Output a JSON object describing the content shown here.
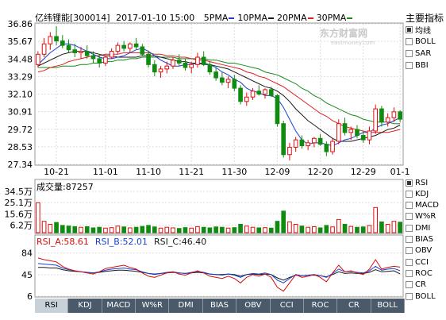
{
  "header": {
    "stock_name": "亿纬锂能",
    "code": "[300014]",
    "datetime": "2017-01-10 15:00",
    "ma_legend": [
      {
        "label": "5PMA",
        "color": "#1a3fd0"
      },
      {
        "label": "10PMA",
        "color": "#1a1a1a"
      },
      {
        "label": "20PMA",
        "color": "#e02020"
      },
      {
        "label": "30PMA",
        "color": "#1a8a1a"
      }
    ]
  },
  "watermark": {
    "main": "东方财富网",
    "sub": "eastmoney.com"
  },
  "sidebar": {
    "title": "主要指标",
    "main_items": [
      {
        "label": "均线",
        "checked": true
      },
      {
        "label": "BOLL",
        "checked": false
      },
      {
        "label": "SAR",
        "checked": false
      },
      {
        "label": "BBI",
        "checked": false
      }
    ],
    "sub_items": [
      {
        "label": "RSI",
        "checked": true
      },
      {
        "label": "KDJ",
        "checked": false
      },
      {
        "label": "MACD",
        "checked": false
      },
      {
        "label": "W%R",
        "checked": false
      },
      {
        "label": "DMI",
        "checked": false
      },
      {
        "label": "BIAS",
        "checked": false
      },
      {
        "label": "OBV",
        "checked": false
      },
      {
        "label": "CCI",
        "checked": false
      },
      {
        "label": "ROC",
        "checked": false
      },
      {
        "label": "CR",
        "checked": false
      },
      {
        "label": "BOLL",
        "checked": false
      }
    ]
  },
  "tabs": [
    "RSI",
    "KDJ",
    "MACD",
    "W%R",
    "DMI",
    "BIAS",
    "OBV",
    "CCI",
    "ROC",
    "CR",
    "BOLL"
  ],
  "active_tab": "RSI",
  "volume_panel": {
    "label": "成交量:87257",
    "ticks": [
      "34.5万",
      "25.1万",
      "15.6万",
      "6.2万"
    ]
  },
  "rsi_panel": {
    "labels": [
      {
        "text": "RSI_A:58.61",
        "color": "#d01010"
      },
      {
        "text": "RSI_B:52.01",
        "color": "#1a3fd0"
      },
      {
        "text": "RSI_C:46.40",
        "color": "#1a1a1a"
      }
    ],
    "ticks": [
      "84",
      "45",
      "6"
    ]
  },
  "colors": {
    "up": "#e01010",
    "down": "#108a10",
    "vol_up": "#e01010",
    "vol_down": "#108a10"
  },
  "chart_data": {
    "type": "candlestick",
    "y_ticks": [
      36.86,
      35.67,
      34.48,
      33.29,
      32.1,
      30.91,
      29.72,
      28.53,
      27.34
    ],
    "ylim": [
      27.34,
      36.86
    ],
    "x_ticks": [
      {
        "label": "10-21",
        "index": 3
      },
      {
        "label": "11-01",
        "index": 11
      },
      {
        "label": "11-10",
        "index": 18
      },
      {
        "label": "11-21",
        "index": 25
      },
      {
        "label": "11-30",
        "index": 32
      },
      {
        "label": "12-09",
        "index": 39
      },
      {
        "label": "12-20",
        "index": 46
      },
      {
        "label": "12-29",
        "index": 53
      },
      {
        "label": "01-1",
        "index": 59
      }
    ],
    "ohlc": [
      [
        34.1,
        35.0,
        33.9,
        34.8
      ],
      [
        34.8,
        35.9,
        34.6,
        35.5
      ],
      [
        35.5,
        36.3,
        35.1,
        36.0
      ],
      [
        36.0,
        36.7,
        35.4,
        35.7
      ],
      [
        35.7,
        36.1,
        35.2,
        35.4
      ],
      [
        35.4,
        35.8,
        34.9,
        35.1
      ],
      [
        35.1,
        35.5,
        34.6,
        34.9
      ],
      [
        34.9,
        35.3,
        34.5,
        35.0
      ],
      [
        35.0,
        35.4,
        34.5,
        34.7
      ],
      [
        34.7,
        35.0,
        34.2,
        34.5
      ],
      [
        34.5,
        34.8,
        33.9,
        34.2
      ],
      [
        34.2,
        34.7,
        34.0,
        34.6
      ],
      [
        34.6,
        35.2,
        34.5,
        35.0
      ],
      [
        35.0,
        35.6,
        34.8,
        35.4
      ],
      [
        35.4,
        35.7,
        35.0,
        35.2
      ],
      [
        35.2,
        35.6,
        34.9,
        35.5
      ],
      [
        35.5,
        35.9,
        35.1,
        35.3
      ],
      [
        35.3,
        35.5,
        34.7,
        34.8
      ],
      [
        34.8,
        35.0,
        33.9,
        34.1
      ],
      [
        34.1,
        34.4,
        33.3,
        33.6
      ],
      [
        33.6,
        34.0,
        33.2,
        33.8
      ],
      [
        33.8,
        34.3,
        33.5,
        34.0
      ],
      [
        34.0,
        34.6,
        33.8,
        34.4
      ],
      [
        34.4,
        34.8,
        34.0,
        34.2
      ],
      [
        34.2,
        34.5,
        33.7,
        33.9
      ],
      [
        33.9,
        34.3,
        33.5,
        34.1
      ],
      [
        34.1,
        34.9,
        33.9,
        34.6
      ],
      [
        34.6,
        35.0,
        34.0,
        34.1
      ],
      [
        34.1,
        34.3,
        33.4,
        33.6
      ],
      [
        33.6,
        33.9,
        33.0,
        33.2
      ],
      [
        33.2,
        33.6,
        32.7,
        32.9
      ],
      [
        32.9,
        33.3,
        32.5,
        33.1
      ],
      [
        33.1,
        33.4,
        32.3,
        32.5
      ],
      [
        32.5,
        32.7,
        31.4,
        31.6
      ],
      [
        31.6,
        32.2,
        31.3,
        31.9
      ],
      [
        31.9,
        32.5,
        31.7,
        32.3
      ],
      [
        32.3,
        32.7,
        32.0,
        32.1
      ],
      [
        32.1,
        32.5,
        31.8,
        32.4
      ],
      [
        32.4,
        32.6,
        31.9,
        32.0
      ],
      [
        32.0,
        32.1,
        29.9,
        30.1
      ],
      [
        30.1,
        30.3,
        27.8,
        28.0
      ],
      [
        28.0,
        28.8,
        27.6,
        28.5
      ],
      [
        28.5,
        29.2,
        28.2,
        29.0
      ],
      [
        29.0,
        29.3,
        28.4,
        28.6
      ],
      [
        28.6,
        29.0,
        28.3,
        28.8
      ],
      [
        28.8,
        29.2,
        28.5,
        29.1
      ],
      [
        29.1,
        29.4,
        28.6,
        28.7
      ],
      [
        28.7,
        28.9,
        27.9,
        28.2
      ],
      [
        28.2,
        29.1,
        28.0,
        28.9
      ],
      [
        28.9,
        30.4,
        28.7,
        30.1
      ],
      [
        30.1,
        30.5,
        29.3,
        29.5
      ],
      [
        29.5,
        29.9,
        29.0,
        29.7
      ],
      [
        29.7,
        30.0,
        29.1,
        29.3
      ],
      [
        29.3,
        29.6,
        28.8,
        29.0
      ],
      [
        29.0,
        29.9,
        28.7,
        29.6
      ],
      [
        29.6,
        31.4,
        29.4,
        31.1
      ],
      [
        31.1,
        31.3,
        29.9,
        30.2
      ],
      [
        30.2,
        30.8,
        29.9,
        30.5
      ],
      [
        30.5,
        31.2,
        30.2,
        30.9
      ],
      [
        30.9,
        31.0,
        30.2,
        30.4
      ]
    ],
    "ma5": [
      34.1,
      34.5,
      34.9,
      35.2,
      35.5,
      35.5,
      35.4,
      35.2,
      35.0,
      34.8,
      34.6,
      34.5,
      34.5,
      34.6,
      34.7,
      34.9,
      35.1,
      35.2,
      35.0,
      34.7,
      34.4,
      34.2,
      34.0,
      34.0,
      34.1,
      34.1,
      34.2,
      34.2,
      34.1,
      33.9,
      33.6,
      33.4,
      33.1,
      32.9,
      32.5,
      32.3,
      32.2,
      32.0,
      32.0,
      31.8,
      31.2,
      30.4,
      29.6,
      29.0,
      28.7,
      28.8,
      28.8,
      28.7,
      28.6,
      28.8,
      29.0,
      29.1,
      29.3,
      29.5,
      29.5,
      29.8,
      30.0,
      30.1,
      30.3,
      30.5
    ],
    "ma10": [
      34.0,
      34.2,
      34.4,
      34.6,
      34.8,
      34.9,
      35.0,
      35.0,
      35.0,
      34.9,
      34.8,
      34.7,
      34.7,
      34.6,
      34.6,
      34.6,
      34.6,
      34.7,
      34.7,
      34.7,
      34.6,
      34.5,
      34.4,
      34.3,
      34.3,
      34.2,
      34.2,
      34.1,
      34.1,
      34.0,
      33.9,
      33.8,
      33.6,
      33.4,
      33.2,
      33.0,
      32.8,
      32.6,
      32.5,
      32.3,
      32.0,
      31.6,
      31.1,
      30.7,
      30.3,
      30.0,
      29.7,
      29.4,
      29.1,
      28.9,
      28.9,
      28.9,
      29.0,
      29.1,
      29.2,
      29.3,
      29.5,
      29.7,
      29.8,
      30.0
    ],
    "ma20": [
      33.6,
      33.7,
      33.9,
      34.0,
      34.1,
      34.3,
      34.4,
      34.5,
      34.6,
      34.7,
      34.7,
      34.8,
      34.8,
      34.8,
      34.9,
      34.9,
      34.9,
      34.9,
      34.9,
      34.8,
      34.8,
      34.7,
      34.7,
      34.6,
      34.6,
      34.5,
      34.4,
      34.4,
      34.3,
      34.2,
      34.1,
      34.0,
      33.9,
      33.8,
      33.6,
      33.5,
      33.3,
      33.2,
      33.0,
      32.8,
      32.6,
      32.3,
      32.0,
      31.7,
      31.4,
      31.1,
      30.8,
      30.6,
      30.3,
      30.1,
      29.9,
      29.8,
      29.7,
      29.6,
      29.5,
      29.5,
      29.5,
      29.5,
      29.6,
      29.7
    ],
    "ma30": [
      33.9,
      33.9,
      33.9,
      33.9,
      34.0,
      34.0,
      34.0,
      34.1,
      34.1,
      34.2,
      34.2,
      34.3,
      34.3,
      34.4,
      34.4,
      34.5,
      34.5,
      34.6,
      34.6,
      34.6,
      34.6,
      34.6,
      34.6,
      34.5,
      34.5,
      34.5,
      34.5,
      34.5,
      34.4,
      34.4,
      34.3,
      34.2,
      34.2,
      34.1,
      34.0,
      33.9,
      33.8,
      33.6,
      33.5,
      33.4,
      33.2,
      33.0,
      32.8,
      32.5,
      32.3,
      32.0,
      31.8,
      31.5,
      31.3,
      31.1,
      30.9,
      30.7,
      30.6,
      30.4,
      30.3,
      30.2,
      30.2,
      30.2,
      30.1,
      30.1
    ],
    "volume": [
      250000,
      95000,
      70000,
      85000,
      60000,
      55000,
      50000,
      45000,
      50000,
      40000,
      45000,
      38000,
      42000,
      55000,
      48000,
      40000,
      45000,
      52000,
      60000,
      48000,
      38000,
      45000,
      40000,
      35000,
      42000,
      38000,
      50000,
      45000,
      40000,
      48000,
      45000,
      38000,
      42000,
      70000,
      55000,
      45000,
      40000,
      42000,
      38000,
      95000,
      180000,
      90000,
      70000,
      55000,
      45000,
      50000,
      40000,
      60000,
      48000,
      110000,
      70000,
      52000,
      45000,
      48000,
      60000,
      210000,
      90000,
      70000,
      95000,
      87257
    ],
    "volume_ylim": [
      0,
      345000
    ],
    "rsi_a": [
      75,
      72,
      70,
      68,
      60,
      55,
      52,
      50,
      48,
      46,
      50,
      56,
      58,
      60,
      62,
      58,
      55,
      48,
      42,
      40,
      44,
      48,
      50,
      46,
      44,
      48,
      52,
      48,
      42,
      40,
      38,
      42,
      38,
      30,
      40,
      45,
      42,
      46,
      40,
      22,
      15,
      30,
      45,
      40,
      42,
      45,
      40,
      32,
      48,
      62,
      50,
      52,
      48,
      45,
      55,
      72,
      55,
      58,
      60,
      58.61
    ],
    "rsi_b": [
      65,
      64,
      63,
      62,
      57,
      54,
      52,
      50,
      49,
      48,
      50,
      53,
      55,
      56,
      57,
      55,
      54,
      50,
      47,
      45,
      47,
      49,
      50,
      48,
      47,
      49,
      51,
      49,
      46,
      45,
      44,
      46,
      44,
      40,
      45,
      47,
      46,
      48,
      45,
      35,
      30,
      38,
      45,
      43,
      44,
      45,
      43,
      40,
      47,
      55,
      50,
      51,
      49,
      48,
      52,
      60,
      53,
      55,
      56,
      52.01
    ],
    "rsi_c": [
      58,
      58,
      57,
      57,
      54,
      52,
      51,
      50,
      49,
      48,
      49,
      51,
      52,
      53,
      53,
      52,
      51,
      49,
      47,
      46,
      47,
      48,
      49,
      48,
      47,
      48,
      49,
      48,
      46,
      45,
      45,
      46,
      45,
      42,
      45,
      46,
      45,
      46,
      45,
      39,
      35,
      40,
      44,
      43,
      44,
      44,
      43,
      41,
      45,
      50,
      47,
      48,
      47,
      47,
      49,
      54,
      50,
      51,
      52,
      46.4
    ],
    "rsi_ylim": [
      6,
      95
    ]
  }
}
